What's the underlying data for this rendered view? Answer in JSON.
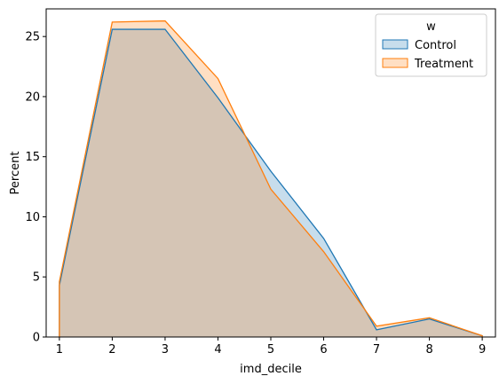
{
  "chart_data": {
    "type": "area",
    "xlabel": "imd_decile",
    "ylabel": "Percent",
    "xlim": [
      0.75,
      9.25
    ],
    "ylim": [
      0,
      27.3
    ],
    "grid": false,
    "x_ticks": [
      1,
      2,
      3,
      4,
      5,
      6,
      7,
      8,
      9
    ],
    "y_ticks": [
      0,
      5,
      10,
      15,
      20,
      25
    ],
    "legend": {
      "title": "w",
      "placement": "top-right"
    },
    "series": [
      {
        "name": "Control",
        "line_color": "#1f77b4",
        "fill_color": "#1f77b4",
        "fill_opacity": 0.25,
        "x": [
          1,
          1,
          2,
          3,
          4,
          5,
          6,
          7,
          8,
          9,
          9
        ],
        "y": [
          0,
          4.3,
          25.6,
          25.6,
          19.9,
          13.8,
          8.2,
          0.6,
          1.5,
          0.1,
          0
        ]
      },
      {
        "name": "Treatment",
        "line_color": "#ff7f0e",
        "fill_color": "#ff7f0e",
        "fill_opacity": 0.25,
        "x": [
          1,
          1,
          2,
          3,
          4,
          5,
          6,
          7,
          8,
          9,
          9
        ],
        "y": [
          0,
          4.6,
          26.2,
          26.3,
          21.5,
          12.3,
          7.1,
          0.9,
          1.6,
          0.1,
          0
        ]
      }
    ]
  }
}
